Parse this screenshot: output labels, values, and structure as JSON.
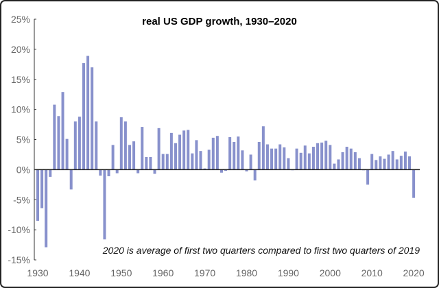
{
  "chart_data": {
    "type": "bar",
    "title": "real US GDP growth, 1930–2020",
    "annotation": "2020 is average of first two quarters compared to first two quarters of 2019",
    "xlabel": "",
    "ylabel": "",
    "ylim": [
      -15,
      25
    ],
    "yticks": [
      "25%",
      "20%",
      "15%",
      "10%",
      "5%",
      "0%",
      "-5%",
      "-10%",
      "-15%"
    ],
    "ytick_values": [
      25,
      20,
      15,
      10,
      5,
      0,
      -5,
      -10,
      -15
    ],
    "xticks": [
      "1930",
      "1940",
      "1950",
      "1960",
      "1970",
      "1980",
      "1990",
      "2000",
      "2010",
      "2020"
    ],
    "xtick_values": [
      1930,
      1940,
      1950,
      1960,
      1970,
      1980,
      1990,
      2000,
      2010,
      2020
    ],
    "bar_color": "#8891cc",
    "grid": false,
    "x_start": 1930,
    "values": [
      -8.5,
      -6.4,
      -12.9,
      -1.2,
      10.8,
      8.9,
      12.9,
      5.1,
      -3.3,
      8.0,
      8.8,
      17.7,
      18.9,
      17.0,
      8.0,
      -1.0,
      -11.6,
      -1.1,
      4.1,
      -0.6,
      8.7,
      8.0,
      4.1,
      4.7,
      -0.6,
      7.1,
      2.1,
      2.1,
      -0.7,
      6.9,
      2.6,
      2.6,
      6.1,
      4.4,
      5.8,
      6.5,
      6.6,
      2.7,
      4.9,
      3.1,
      0.2,
      3.3,
      5.3,
      5.6,
      -0.5,
      -0.2,
      5.4,
      4.6,
      5.5,
      3.2,
      -0.3,
      2.5,
      -1.8,
      4.6,
      7.2,
      4.2,
      3.5,
      3.5,
      4.2,
      3.7,
      1.9,
      -0.1,
      3.5,
      2.8,
      4.0,
      2.7,
      3.8,
      4.4,
      4.5,
      4.8,
      4.1,
      1.0,
      1.7,
      2.9,
      3.8,
      3.5,
      2.9,
      1.9,
      -0.1,
      -2.5,
      2.6,
      1.6,
      2.2,
      1.8,
      2.5,
      3.1,
      1.7,
      2.3,
      3.0,
      2.2,
      -4.7
    ]
  }
}
